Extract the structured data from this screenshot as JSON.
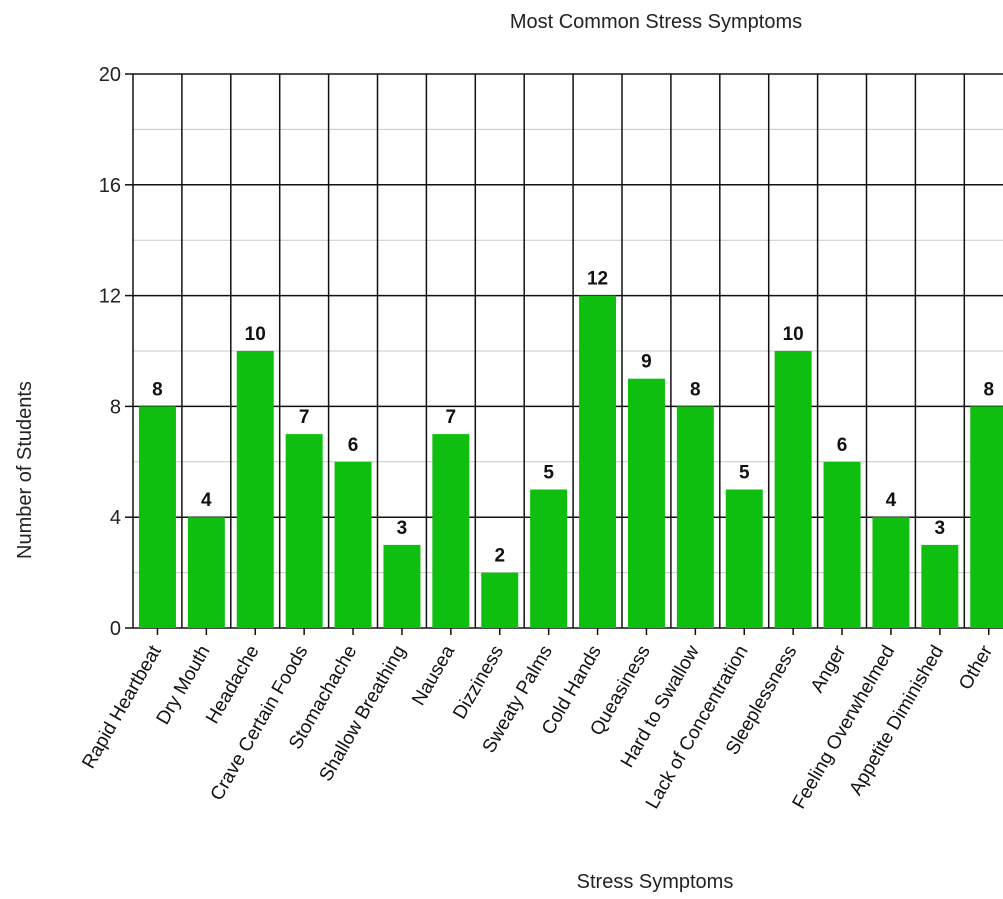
{
  "chart_data": {
    "type": "bar",
    "title": "Most Common Stress Symptoms",
    "xlabel": "Stress Symptoms",
    "ylabel": "Number of Students",
    "ylim": [
      0,
      20
    ],
    "yticks": [
      0,
      4,
      8,
      12,
      16,
      20
    ],
    "grid": true,
    "bar_color": "#0fbf0f",
    "categories": [
      "Rapid Heartbeat",
      "Dry Mouth",
      "Headache",
      "Crave Certain Foods",
      "Stomachache",
      "Shallow Breathing",
      "Nausea",
      "Dizziness",
      "Sweaty Palms",
      "Cold Hands",
      "Queasiness",
      "Hard to Swallow",
      "Lack of Concentration",
      "Sleeplessness",
      "Anger",
      "Feeling Overwhelmed",
      "Appetite Diminished",
      "Other"
    ],
    "values": [
      8,
      4,
      10,
      7,
      6,
      3,
      7,
      2,
      5,
      12,
      9,
      8,
      5,
      10,
      6,
      4,
      3,
      8
    ]
  }
}
